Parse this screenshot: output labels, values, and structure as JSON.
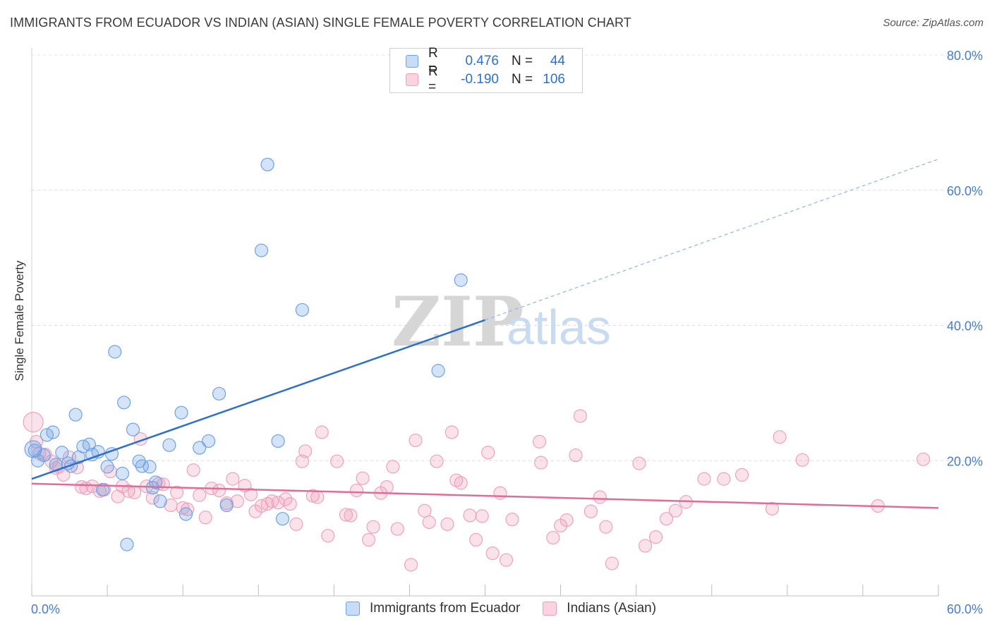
{
  "header": {
    "title": "IMMIGRANTS FROM ECUADOR VS INDIAN (ASIAN) SINGLE FEMALE POVERTY CORRELATION CHART",
    "source": "Source: ZipAtlas.com"
  },
  "watermark": {
    "zip": "ZIP",
    "atlas": "atlas"
  },
  "legend": {
    "rows": [
      {
        "r_label": "R =",
        "r_value": "0.476",
        "n_label": "N =",
        "n_value": "44",
        "color": "#6fa3e6"
      },
      {
        "r_label": "R =",
        "r_value": "-0.190",
        "n_label": "N =",
        "n_value": "106",
        "color": "#f0a0bb"
      }
    ]
  },
  "bottom_legend": {
    "items": [
      {
        "label": "Immigrants from Ecuador",
        "color": "#6fa3e6"
      },
      {
        "label": "Indians (Asian)",
        "color": "#f0a0bb"
      }
    ]
  },
  "chart_data": {
    "type": "scatter",
    "title": "IMMIGRANTS FROM ECUADOR VS INDIAN (ASIAN) SINGLE FEMALE POVERTY CORRELATION CHART",
    "xlabel": "",
    "ylabel": "Single Female Poverty",
    "xlim": [
      0,
      60
    ],
    "ylim": [
      0,
      80
    ],
    "x_tick_labels": [
      "0.0%",
      "60.0%"
    ],
    "y_tick_labels": [
      "20.0%",
      "40.0%",
      "60.0%",
      "80.0%"
    ],
    "y_ticks": [
      20,
      40,
      60,
      80
    ],
    "grid": true,
    "series": [
      {
        "name": "Immigrants from Ecuador",
        "color": "#6fa3e6",
        "line_color": "#2f6fca",
        "r": 0.476,
        "n": 44,
        "trend": {
          "x0": 0,
          "y0": 17.3,
          "x1": 30,
          "y1": 40.8,
          "dashed_to_x": 60,
          "dashed_to_y": 64.6
        },
        "points": [
          [
            0.2,
            21.5
          ],
          [
            0.4,
            20.0
          ],
          [
            0.8,
            20.8
          ],
          [
            1.0,
            23.8
          ],
          [
            1.4,
            24.2
          ],
          [
            1.6,
            19.4
          ],
          [
            2.0,
            21.2
          ],
          [
            2.4,
            19.6
          ],
          [
            2.6,
            19.2
          ],
          [
            2.9,
            26.8
          ],
          [
            3.1,
            20.5
          ],
          [
            3.4,
            22.1
          ],
          [
            3.8,
            22.4
          ],
          [
            4.0,
            20.9
          ],
          [
            4.4,
            21.3
          ],
          [
            4.7,
            15.7
          ],
          [
            5.0,
            19.1
          ],
          [
            5.3,
            21.0
          ],
          [
            5.5,
            36.1
          ],
          [
            6.0,
            18.1
          ],
          [
            6.1,
            28.6
          ],
          [
            6.3,
            7.6
          ],
          [
            6.7,
            24.6
          ],
          [
            7.1,
            19.9
          ],
          [
            7.3,
            19.2
          ],
          [
            7.8,
            19.1
          ],
          [
            8.0,
            16.0
          ],
          [
            8.2,
            16.8
          ],
          [
            8.5,
            14.0
          ],
          [
            9.1,
            22.3
          ],
          [
            9.9,
            27.1
          ],
          [
            10.2,
            12.1
          ],
          [
            11.1,
            21.9
          ],
          [
            11.7,
            22.9
          ],
          [
            12.4,
            29.9
          ],
          [
            12.9,
            13.4
          ],
          [
            15.2,
            51.1
          ],
          [
            15.6,
            63.8
          ],
          [
            16.3,
            22.9
          ],
          [
            16.6,
            11.4
          ],
          [
            17.9,
            42.3
          ],
          [
            26.9,
            33.3
          ],
          [
            28.4,
            46.7
          ],
          [
            0.1,
            21.7
          ]
        ]
      },
      {
        "name": "Indians (Asian)",
        "color": "#f0a0bb",
        "line_color": "#e06d98",
        "r": -0.19,
        "n": 106,
        "trend": {
          "x0": 0,
          "y0": 16.6,
          "x1": 60,
          "y1": 13.0
        },
        "points": [
          [
            0.1,
            25.7
          ],
          [
            0.3,
            22.8
          ],
          [
            0.5,
            21.1
          ],
          [
            0.9,
            20.9
          ],
          [
            1.3,
            19.9
          ],
          [
            1.6,
            18.9
          ],
          [
            2.1,
            17.9
          ],
          [
            2.5,
            20.5
          ],
          [
            3.0,
            19.0
          ],
          [
            3.3,
            16.1
          ],
          [
            3.6,
            15.9
          ],
          [
            4.0,
            16.2
          ],
          [
            4.5,
            15.5
          ],
          [
            4.8,
            15.7
          ],
          [
            5.2,
            18.4
          ],
          [
            5.7,
            14.7
          ],
          [
            6.0,
            16.2
          ],
          [
            6.4,
            15.5
          ],
          [
            6.8,
            15.3
          ],
          [
            7.2,
            23.2
          ],
          [
            7.6,
            16.2
          ],
          [
            8.0,
            14.5
          ],
          [
            8.4,
            16.6
          ],
          [
            8.7,
            16.5
          ],
          [
            9.2,
            13.4
          ],
          [
            9.6,
            15.3
          ],
          [
            10.0,
            13.0
          ],
          [
            10.3,
            12.8
          ],
          [
            10.7,
            18.6
          ],
          [
            11.1,
            14.9
          ],
          [
            11.5,
            11.6
          ],
          [
            11.9,
            15.9
          ],
          [
            12.4,
            15.6
          ],
          [
            12.9,
            13.7
          ],
          [
            13.3,
            17.3
          ],
          [
            13.6,
            14.0
          ],
          [
            14.1,
            16.3
          ],
          [
            14.5,
            15.0
          ],
          [
            14.8,
            12.5
          ],
          [
            15.2,
            13.3
          ],
          [
            15.6,
            13.6
          ],
          [
            15.9,
            14.0
          ],
          [
            16.3,
            13.8
          ],
          [
            16.8,
            14.3
          ],
          [
            17.1,
            13.6
          ],
          [
            17.5,
            10.6
          ],
          [
            17.9,
            19.9
          ],
          [
            18.1,
            21.4
          ],
          [
            18.6,
            14.8
          ],
          [
            18.9,
            14.6
          ],
          [
            19.2,
            24.2
          ],
          [
            19.6,
            8.9
          ],
          [
            20.2,
            19.9
          ],
          [
            20.8,
            12.0
          ],
          [
            21.1,
            11.9
          ],
          [
            21.5,
            15.6
          ],
          [
            21.9,
            17.4
          ],
          [
            22.3,
            8.3
          ],
          [
            22.6,
            10.2
          ],
          [
            23.1,
            15.2
          ],
          [
            23.5,
            16.1
          ],
          [
            23.9,
            19.1
          ],
          [
            24.2,
            9.9
          ],
          [
            25.1,
            4.6
          ],
          [
            25.4,
            23.0
          ],
          [
            26.0,
            12.6
          ],
          [
            26.3,
            10.9
          ],
          [
            26.8,
            19.9
          ],
          [
            27.5,
            10.6
          ],
          [
            27.8,
            24.2
          ],
          [
            28.1,
            17.1
          ],
          [
            28.4,
            16.7
          ],
          [
            29.0,
            11.9
          ],
          [
            29.4,
            8.3
          ],
          [
            29.8,
            11.8
          ],
          [
            30.2,
            21.2
          ],
          [
            30.5,
            6.3
          ],
          [
            31.0,
            15.2
          ],
          [
            31.4,
            5.3
          ],
          [
            31.8,
            11.3
          ],
          [
            33.6,
            22.8
          ],
          [
            33.7,
            19.7
          ],
          [
            34.5,
            8.6
          ],
          [
            35.0,
            10.4
          ],
          [
            35.4,
            11.2
          ],
          [
            36.0,
            20.8
          ],
          [
            36.3,
            26.6
          ],
          [
            37.0,
            12.5
          ],
          [
            37.6,
            14.6
          ],
          [
            38.0,
            10.2
          ],
          [
            38.4,
            4.8
          ],
          [
            40.2,
            19.6
          ],
          [
            40.6,
            7.4
          ],
          [
            41.3,
            8.7
          ],
          [
            42.0,
            11.4
          ],
          [
            42.6,
            12.6
          ],
          [
            43.3,
            13.9
          ],
          [
            44.5,
            17.3
          ],
          [
            45.8,
            17.3
          ],
          [
            47.0,
            17.9
          ],
          [
            49.0,
            12.9
          ],
          [
            49.5,
            23.5
          ],
          [
            51.0,
            20.1
          ],
          [
            56.0,
            13.3
          ],
          [
            59.0,
            20.2
          ],
          [
            1.8,
            19.1
          ]
        ]
      }
    ]
  }
}
